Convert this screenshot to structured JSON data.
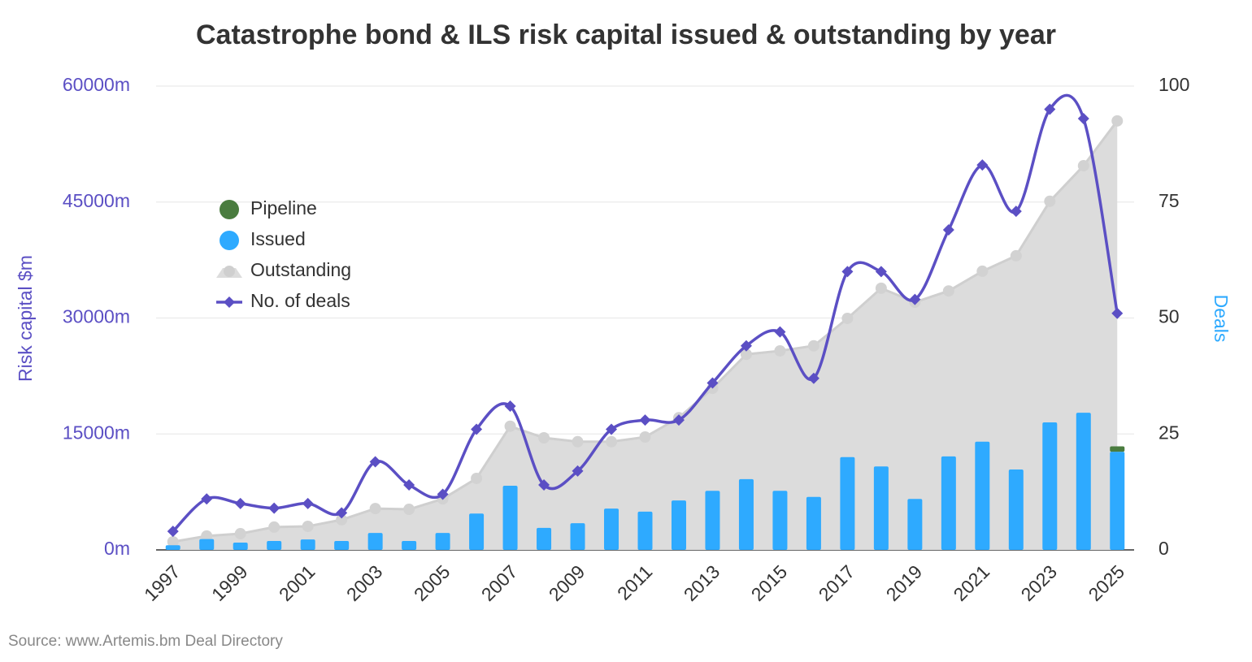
{
  "chart_data": {
    "type": "combo",
    "title": "Catastrophe bond & ILS risk capital issued & outstanding by year",
    "source": "Source: www.Artemis.bm Deal Directory",
    "y_label": "Risk capital $m",
    "y2_label": "Deals",
    "categories": [
      "1997",
      null,
      "1999",
      null,
      "2001",
      null,
      "2003",
      null,
      "2005",
      null,
      "2007",
      null,
      "2009",
      null,
      "2011",
      null,
      "2013",
      null,
      "2015",
      null,
      "2017",
      null,
      "2019",
      null,
      "2021",
      null,
      "2023",
      null,
      "2025"
    ],
    "series": [
      {
        "name": "Pipeline",
        "type": "bar",
        "stack": true,
        "color": "#4a7c3f",
        "values": [
          0,
          0,
          0,
          0,
          0,
          0,
          0,
          0,
          0,
          0,
          0,
          0,
          0,
          0,
          0,
          0,
          0,
          0,
          0,
          0,
          0,
          0,
          0,
          0,
          0,
          0,
          0,
          0,
          700
        ]
      },
      {
        "name": "Issued",
        "type": "bar",
        "stack": true,
        "color": "#2eaaff",
        "values": [
          600,
          1400,
          950,
          1150,
          1350,
          1150,
          2200,
          1150,
          2200,
          4700,
          8300,
          2850,
          3450,
          5350,
          4950,
          6400,
          7650,
          9150,
          7650,
          6850,
          12000,
          10800,
          6600,
          12100,
          14000,
          10400,
          16500,
          17750,
          12700
        ]
      },
      {
        "name": "Outstanding",
        "type": "area",
        "color": "#dcdcdc",
        "values": [
          1050,
          1800,
          2100,
          2950,
          3050,
          3900,
          5350,
          5250,
          6600,
          9250,
          16000,
          14500,
          14000,
          14000,
          14600,
          17100,
          20900,
          25300,
          25750,
          26400,
          29950,
          33850,
          32050,
          33500,
          36050,
          38050,
          45100,
          49700,
          55500
        ]
      },
      {
        "name": "No. of deals",
        "type": "line",
        "axis": "y2",
        "color": "#5b4fc4",
        "values": [
          4,
          11,
          10,
          9,
          10,
          8,
          19,
          14,
          12,
          26,
          31,
          14,
          17,
          26,
          28,
          28,
          36,
          44,
          47,
          37,
          60,
          60,
          54,
          69,
          83,
          73,
          95,
          93,
          51
        ]
      }
    ],
    "ylim": [
      0,
      60000
    ],
    "yticks": [
      {
        "value": 0,
        "label": "0m"
      },
      {
        "value": 15000,
        "label": "15000m"
      },
      {
        "value": 30000,
        "label": "30000m"
      },
      {
        "value": 45000,
        "label": "45000m"
      },
      {
        "value": 60000,
        "label": "60000m"
      }
    ],
    "y2lim": [
      0,
      100
    ],
    "y2ticks": [
      0,
      25,
      50,
      75,
      100
    ],
    "grid": true,
    "legend": "upper-left"
  }
}
